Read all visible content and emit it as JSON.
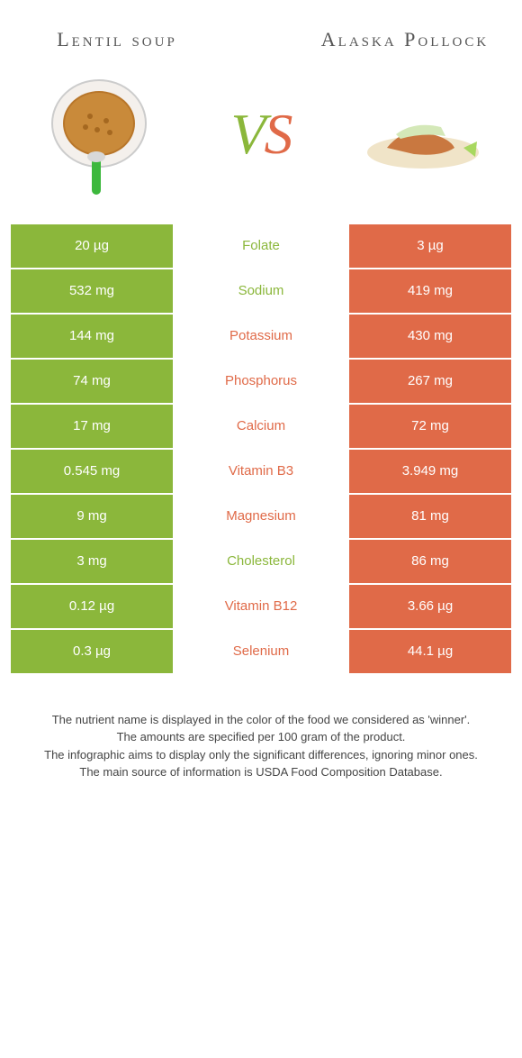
{
  "foods": {
    "left": {
      "title": "Lentil soup",
      "color": "#8bb73b"
    },
    "right": {
      "title": "Alaska Pollock",
      "color": "#e06a48"
    }
  },
  "vs": {
    "v": "V",
    "s": "S"
  },
  "rows": [
    {
      "left": "20 µg",
      "mid": "Folate",
      "right": "3 µg",
      "winner": "left"
    },
    {
      "left": "532 mg",
      "mid": "Sodium",
      "right": "419 mg",
      "winner": "left"
    },
    {
      "left": "144 mg",
      "mid": "Potassium",
      "right": "430 mg",
      "winner": "right"
    },
    {
      "left": "74 mg",
      "mid": "Phosphorus",
      "right": "267 mg",
      "winner": "right"
    },
    {
      "left": "17 mg",
      "mid": "Calcium",
      "right": "72 mg",
      "winner": "right"
    },
    {
      "left": "0.545 mg",
      "mid": "Vitamin B3",
      "right": "3.949 mg",
      "winner": "right"
    },
    {
      "left": "9 mg",
      "mid": "Magnesium",
      "right": "81 mg",
      "winner": "right"
    },
    {
      "left": "3 mg",
      "mid": "Cholesterol",
      "right": "86 mg",
      "winner": "left"
    },
    {
      "left": "0.12 µg",
      "mid": "Vitamin B12",
      "right": "3.66 µg",
      "winner": "right"
    },
    {
      "left": "0.3 µg",
      "mid": "Selenium",
      "right": "44.1 µg",
      "winner": "right"
    }
  ],
  "footer": {
    "l1": "The nutrient name is displayed in the color of the food we considered as 'winner'.",
    "l2": "The amounts are specified per 100 gram of the product.",
    "l3": "The infographic aims to display only the significant differences, ignoring minor ones.",
    "l4": "The main source of information is USDA Food Composition Database."
  },
  "colors": {
    "left_bg": "#8bb73b",
    "right_bg": "#e06a48",
    "page_bg": "#ffffff"
  }
}
